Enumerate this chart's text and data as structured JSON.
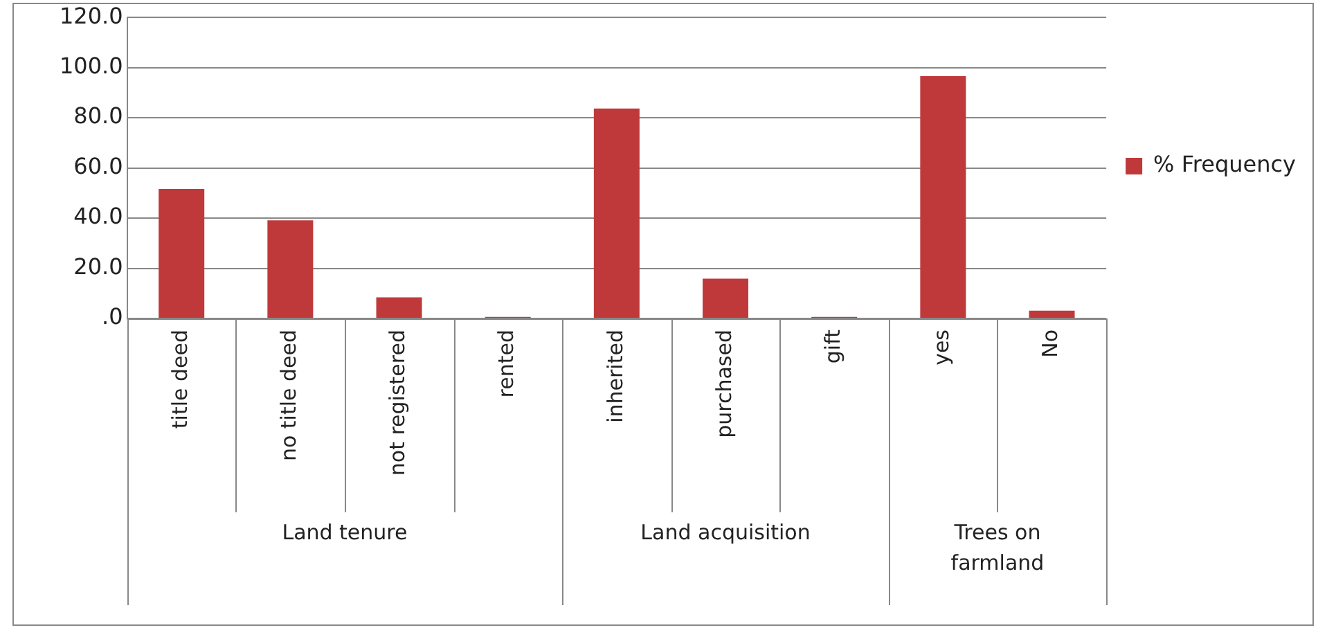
{
  "chart_data": {
    "type": "bar",
    "categories": [
      "title deed",
      "no title deed",
      "not registered",
      "rented",
      "inherited",
      "purchased",
      "gift",
      "yes",
      "No"
    ],
    "series": [
      {
        "name": "% Frequency",
        "color": "#c0393a",
        "values": [
          51.6,
          39.1,
          8.4,
          0.6,
          83.7,
          15.9,
          0.6,
          96.6,
          3.1
        ]
      }
    ],
    "annotations": [
      "Land tenure",
      "Land acquisition",
      "Trees on\nfarmland"
    ],
    "ylim": [
      0,
      120
    ],
    "yticks": [
      {
        "value": 0,
        "label": ".0"
      },
      {
        "value": 20,
        "label": "20.0"
      },
      {
        "value": 40,
        "label": "40.0"
      },
      {
        "value": 60,
        "label": "60.0"
      },
      {
        "value": 80,
        "label": "80.0"
      },
      {
        "value": 100,
        "label": "100.0"
      },
      {
        "value": 120,
        "label": "120.0"
      }
    ],
    "grid": "y",
    "legend": "right"
  }
}
